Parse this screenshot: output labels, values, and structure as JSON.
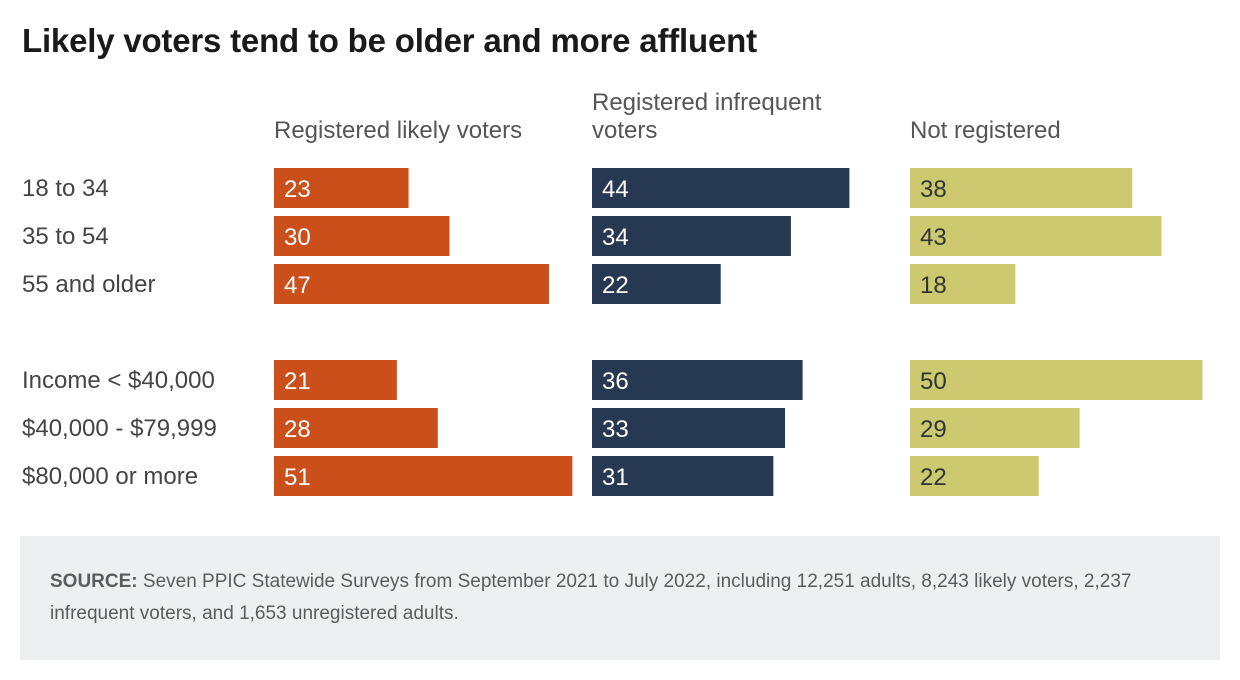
{
  "chart_data": {
    "type": "bar",
    "orientation": "horizontal",
    "title": "Likely voters tend to be older and more affluent",
    "category_groups": [
      [
        "18 to 34",
        "35 to 54",
        "55 and older"
      ],
      [
        "Income < $40,000",
        "$40,000 - $79,999",
        "$80,000 or more"
      ]
    ],
    "series": [
      {
        "name": "Registered likely voters",
        "name_lines": [
          "Registered likely voters"
        ],
        "color": "#cb4f1b",
        "label_color": "#ffffff",
        "values": [
          23,
          30,
          47,
          21,
          28,
          51
        ]
      },
      {
        "name": "Registered infrequent voters",
        "name_lines": [
          "Registered infrequent",
          "voters"
        ],
        "color": "#263852",
        "label_color": "#ffffff",
        "values": [
          44,
          34,
          22,
          36,
          33,
          31
        ]
      },
      {
        "name": "Not registered",
        "name_lines": [
          "Not registered"
        ],
        "color": "#ccc970",
        "label_color": "#333333",
        "values": [
          38,
          43,
          18,
          50,
          29,
          22
        ]
      }
    ],
    "grid": false,
    "data_labels": true
  },
  "source": {
    "label": "SOURCE:",
    "text": "Seven PPIC Statewide Surveys from September 2021 to July 2022, including 12,251 adults, 8,243 likely voters, 2,237 infrequent voters, and 1,653 unregistered adults."
  }
}
